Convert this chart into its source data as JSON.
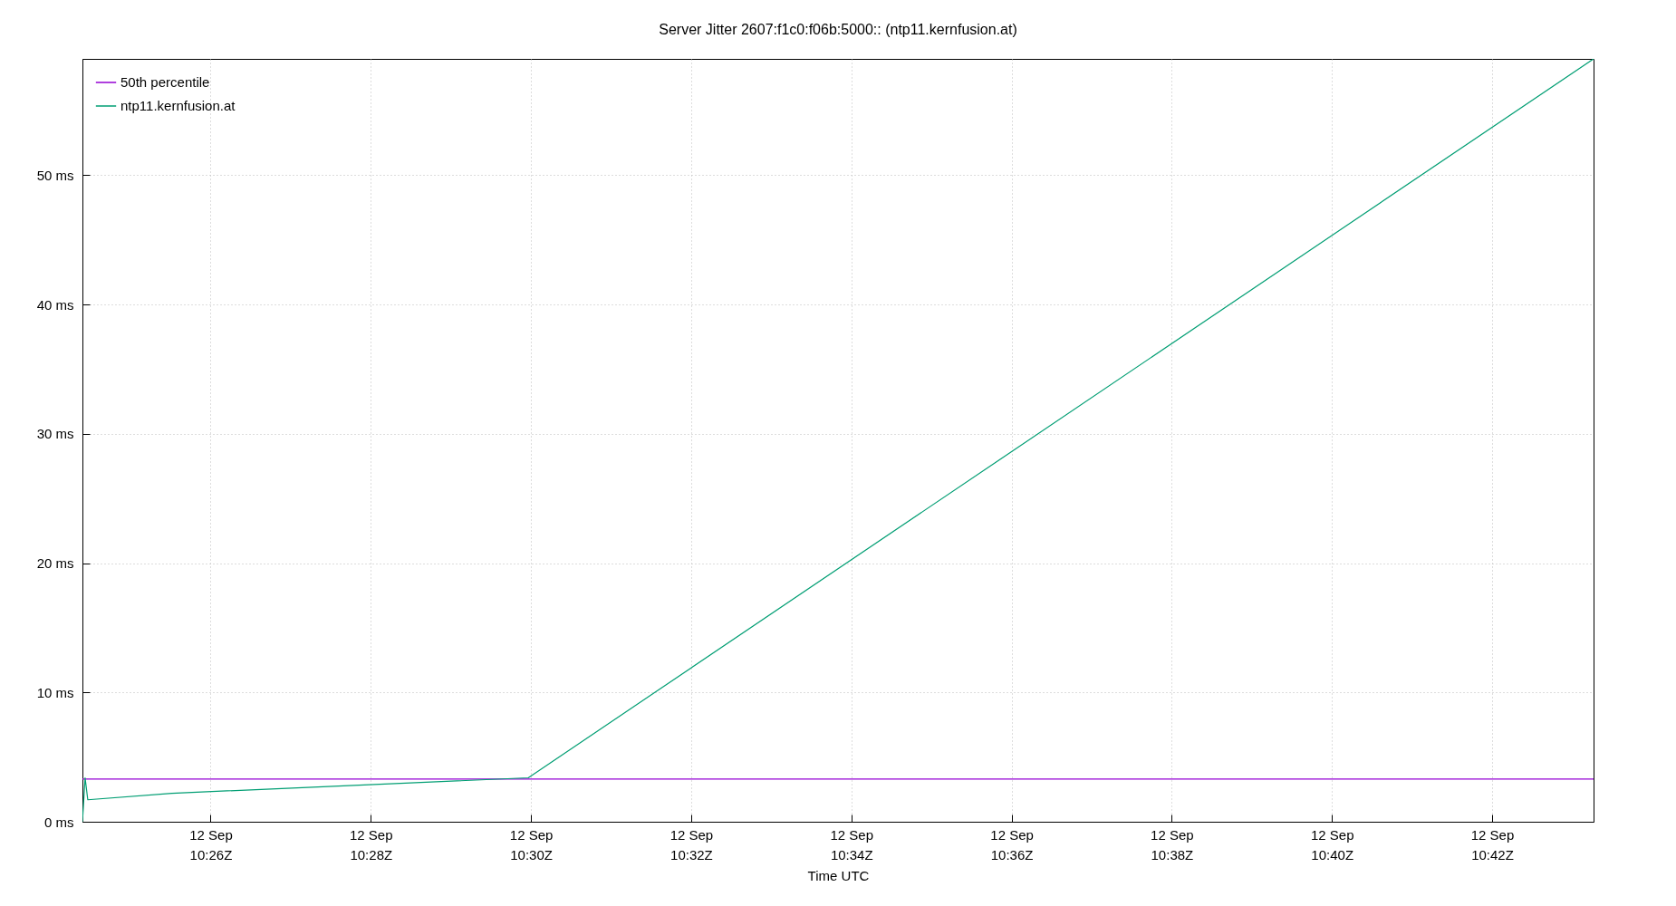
{
  "chart_data": {
    "type": "line",
    "title": "Server Jitter 2607:f1c0:f06b:5000:: (ntp11.kernfusion.at)",
    "xlabel": "Time UTC",
    "series": [
      {
        "name": "50th percentile",
        "color": "#9400d3",
        "x": [
          "--09-12T10:24:24",
          "--09-12T10:43:16"
        ],
        "values": [
          3.3,
          3.3
        ]
      },
      {
        "name": "ntp11.kernfusion.at",
        "color": "#009e73",
        "x": [
          "--09-12T10:24:24",
          "--09-12T10:24:26",
          "--09-12T10:24:28",
          "--09-12T10:25:31",
          "--09-12T10:29:58",
          "--09-12T10:43:16"
        ],
        "values": [
          0,
          3.4,
          1.7,
          2.2,
          3.4,
          59
        ]
      }
    ],
    "xlim": [
      "--09-12T10:24:24",
      "--09-12T10:43:16"
    ],
    "xticks": [
      {
        "value": "--09-12T10:26",
        "label": "12 Sep\n10:26Z"
      },
      {
        "value": "--09-12T10:28",
        "label": "12 Sep\n10:28Z"
      },
      {
        "value": "--09-12T10:30",
        "label": "12 Sep\n10:30Z"
      },
      {
        "value": "--09-12T10:32",
        "label": "12 Sep\n10:32Z"
      },
      {
        "value": "--09-12T10:34",
        "label": "12 Sep\n10:34Z"
      },
      {
        "value": "--09-12T10:36",
        "label": "12 Sep\n10:36Z"
      },
      {
        "value": "--09-12T10:38",
        "label": "12 Sep\n10:38Z"
      },
      {
        "value": "--09-12T10:40",
        "label": "12 Sep\n10:40Z"
      },
      {
        "value": "--09-12T10:42",
        "label": "12 Sep\n10:42Z"
      }
    ],
    "ylim": [
      0,
      59
    ],
    "yticks": [
      {
        "value": 0,
        "label": "0 ms"
      },
      {
        "value": 10,
        "label": "10 ms"
      },
      {
        "value": 20,
        "label": "20 ms"
      },
      {
        "value": 30,
        "label": "30 ms"
      },
      {
        "value": 40,
        "label": "40 ms"
      },
      {
        "value": 50,
        "label": "50 ms"
      }
    ],
    "grid": true,
    "legend": "top left"
  }
}
